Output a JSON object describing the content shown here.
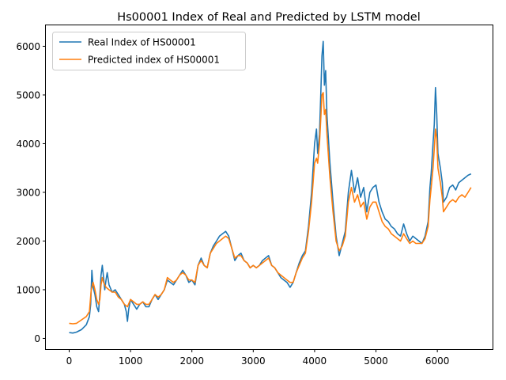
{
  "chart_data": {
    "type": "line",
    "title": "Hs00001 Index of Real and Predicted by LSTM model",
    "xlabel": "",
    "ylabel": "",
    "xlim": [
      -380,
      6900
    ],
    "ylim": [
      -220,
      6430
    ],
    "xticks": [
      0,
      1000,
      2000,
      3000,
      4000,
      5000,
      6000
    ],
    "yticks": [
      0,
      1000,
      2000,
      3000,
      4000,
      5000,
      6000
    ],
    "grid": false,
    "legend_position": "upper left",
    "series": [
      {
        "name": "Real Index of HS00001",
        "color": "#1f77b4",
        "points": [
          [
            0,
            120
          ],
          [
            60,
            110
          ],
          [
            120,
            130
          ],
          [
            200,
            180
          ],
          [
            280,
            280
          ],
          [
            330,
            450
          ],
          [
            350,
            700
          ],
          [
            370,
            1400
          ],
          [
            390,
            1050
          ],
          [
            420,
            900
          ],
          [
            450,
            650
          ],
          [
            480,
            550
          ],
          [
            500,
            900
          ],
          [
            520,
            1300
          ],
          [
            540,
            1500
          ],
          [
            560,
            1250
          ],
          [
            580,
            1000
          ],
          [
            600,
            1200
          ],
          [
            620,
            1350
          ],
          [
            650,
            1100
          ],
          [
            700,
            950
          ],
          [
            750,
            1000
          ],
          [
            800,
            900
          ],
          [
            850,
            800
          ],
          [
            900,
            700
          ],
          [
            930,
            550
          ],
          [
            950,
            350
          ],
          [
            970,
            600
          ],
          [
            1000,
            800
          ],
          [
            1050,
            700
          ],
          [
            1100,
            600
          ],
          [
            1150,
            700
          ],
          [
            1200,
            750
          ],
          [
            1250,
            650
          ],
          [
            1300,
            650
          ],
          [
            1350,
            800
          ],
          [
            1400,
            900
          ],
          [
            1450,
            800
          ],
          [
            1500,
            900
          ],
          [
            1550,
            1000
          ],
          [
            1600,
            1200
          ],
          [
            1650,
            1150
          ],
          [
            1700,
            1100
          ],
          [
            1750,
            1200
          ],
          [
            1800,
            1300
          ],
          [
            1850,
            1400
          ],
          [
            1900,
            1300
          ],
          [
            1950,
            1150
          ],
          [
            2000,
            1200
          ],
          [
            2050,
            1100
          ],
          [
            2100,
            1500
          ],
          [
            2150,
            1650
          ],
          [
            2200,
            1500
          ],
          [
            2250,
            1450
          ],
          [
            2300,
            1750
          ],
          [
            2350,
            1900
          ],
          [
            2400,
            2000
          ],
          [
            2450,
            2100
          ],
          [
            2500,
            2150
          ],
          [
            2550,
            2200
          ],
          [
            2600,
            2100
          ],
          [
            2650,
            1850
          ],
          [
            2700,
            1600
          ],
          [
            2750,
            1700
          ],
          [
            2800,
            1750
          ],
          [
            2850,
            1600
          ],
          [
            2900,
            1550
          ],
          [
            2950,
            1450
          ],
          [
            3000,
            1500
          ],
          [
            3050,
            1450
          ],
          [
            3100,
            1500
          ],
          [
            3150,
            1600
          ],
          [
            3200,
            1650
          ],
          [
            3250,
            1700
          ],
          [
            3300,
            1500
          ],
          [
            3350,
            1450
          ],
          [
            3400,
            1350
          ],
          [
            3450,
            1250
          ],
          [
            3500,
            1200
          ],
          [
            3550,
            1150
          ],
          [
            3600,
            1050
          ],
          [
            3650,
            1150
          ],
          [
            3700,
            1350
          ],
          [
            3750,
            1550
          ],
          [
            3800,
            1700
          ],
          [
            3850,
            1800
          ],
          [
            3900,
            2300
          ],
          [
            3950,
            3000
          ],
          [
            4000,
            4000
          ],
          [
            4030,
            4300
          ],
          [
            4050,
            3800
          ],
          [
            4080,
            4200
          ],
          [
            4100,
            5000
          ],
          [
            4120,
            5800
          ],
          [
            4140,
            6100
          ],
          [
            4160,
            5200
          ],
          [
            4180,
            5500
          ],
          [
            4200,
            4600
          ],
          [
            4250,
            3600
          ],
          [
            4300,
            2800
          ],
          [
            4350,
            2100
          ],
          [
            4400,
            1700
          ],
          [
            4450,
            1950
          ],
          [
            4500,
            2200
          ],
          [
            4550,
            3000
          ],
          [
            4600,
            3450
          ],
          [
            4650,
            3000
          ],
          [
            4700,
            3300
          ],
          [
            4750,
            2900
          ],
          [
            4800,
            3100
          ],
          [
            4850,
            2600
          ],
          [
            4900,
            3000
          ],
          [
            4950,
            3100
          ],
          [
            5000,
            3150
          ],
          [
            5050,
            2800
          ],
          [
            5100,
            2600
          ],
          [
            5150,
            2450
          ],
          [
            5200,
            2400
          ],
          [
            5250,
            2300
          ],
          [
            5300,
            2250
          ],
          [
            5350,
            2150
          ],
          [
            5400,
            2100
          ],
          [
            5450,
            2350
          ],
          [
            5500,
            2150
          ],
          [
            5550,
            2000
          ],
          [
            5600,
            2100
          ],
          [
            5650,
            2050
          ],
          [
            5700,
            2000
          ],
          [
            5750,
            1950
          ],
          [
            5800,
            2100
          ],
          [
            5850,
            2400
          ],
          [
            5880,
            3100
          ],
          [
            5900,
            3400
          ],
          [
            5930,
            4000
          ],
          [
            5950,
            4400
          ],
          [
            5970,
            5150
          ],
          [
            5990,
            4600
          ],
          [
            6010,
            3800
          ],
          [
            6050,
            3500
          ],
          [
            6080,
            3200
          ],
          [
            6100,
            2800
          ],
          [
            6150,
            2900
          ],
          [
            6200,
            3100
          ],
          [
            6250,
            3150
          ],
          [
            6300,
            3050
          ],
          [
            6350,
            3200
          ],
          [
            6400,
            3250
          ],
          [
            6450,
            3300
          ],
          [
            6500,
            3350
          ],
          [
            6550,
            3380
          ]
        ]
      },
      {
        "name": "Predicted index of HS00001",
        "color": "#ff7f0e",
        "points": [
          [
            0,
            310
          ],
          [
            60,
            300
          ],
          [
            120,
            310
          ],
          [
            200,
            380
          ],
          [
            280,
            450
          ],
          [
            330,
            550
          ],
          [
            360,
            1000
          ],
          [
            390,
            1150
          ],
          [
            420,
            1000
          ],
          [
            450,
            800
          ],
          [
            480,
            700
          ],
          [
            500,
            800
          ],
          [
            520,
            1100
          ],
          [
            540,
            1250
          ],
          [
            560,
            1150
          ],
          [
            600,
            1050
          ],
          [
            650,
            1000
          ],
          [
            700,
            950
          ],
          [
            750,
            950
          ],
          [
            800,
            850
          ],
          [
            850,
            800
          ],
          [
            900,
            700
          ],
          [
            950,
            650
          ],
          [
            1000,
            800
          ],
          [
            1050,
            750
          ],
          [
            1100,
            700
          ],
          [
            1150,
            700
          ],
          [
            1200,
            750
          ],
          [
            1250,
            700
          ],
          [
            1300,
            700
          ],
          [
            1350,
            800
          ],
          [
            1400,
            900
          ],
          [
            1450,
            850
          ],
          [
            1500,
            900
          ],
          [
            1550,
            1000
          ],
          [
            1600,
            1250
          ],
          [
            1650,
            1200
          ],
          [
            1700,
            1150
          ],
          [
            1750,
            1200
          ],
          [
            1800,
            1300
          ],
          [
            1850,
            1350
          ],
          [
            1900,
            1300
          ],
          [
            1950,
            1200
          ],
          [
            2000,
            1200
          ],
          [
            2050,
            1150
          ],
          [
            2100,
            1500
          ],
          [
            2150,
            1600
          ],
          [
            2200,
            1500
          ],
          [
            2250,
            1450
          ],
          [
            2300,
            1750
          ],
          [
            2350,
            1850
          ],
          [
            2400,
            1950
          ],
          [
            2450,
            2000
          ],
          [
            2500,
            2050
          ],
          [
            2550,
            2100
          ],
          [
            2600,
            2050
          ],
          [
            2650,
            1850
          ],
          [
            2700,
            1650
          ],
          [
            2750,
            1700
          ],
          [
            2800,
            1700
          ],
          [
            2850,
            1600
          ],
          [
            2900,
            1550
          ],
          [
            2950,
            1450
          ],
          [
            3000,
            1500
          ],
          [
            3050,
            1450
          ],
          [
            3100,
            1500
          ],
          [
            3150,
            1550
          ],
          [
            3200,
            1600
          ],
          [
            3250,
            1650
          ],
          [
            3300,
            1500
          ],
          [
            3350,
            1450
          ],
          [
            3400,
            1350
          ],
          [
            3450,
            1300
          ],
          [
            3500,
            1250
          ],
          [
            3550,
            1200
          ],
          [
            3600,
            1150
          ],
          [
            3650,
            1150
          ],
          [
            3700,
            1350
          ],
          [
            3750,
            1500
          ],
          [
            3800,
            1650
          ],
          [
            3850,
            1750
          ],
          [
            3900,
            2200
          ],
          [
            3950,
            2800
          ],
          [
            4000,
            3600
          ],
          [
            4030,
            3700
          ],
          [
            4050,
            3600
          ],
          [
            4080,
            4000
          ],
          [
            4100,
            4500
          ],
          [
            4120,
            5000
          ],
          [
            4140,
            5050
          ],
          [
            4160,
            4600
          ],
          [
            4180,
            4700
          ],
          [
            4200,
            4200
          ],
          [
            4250,
            3300
          ],
          [
            4300,
            2600
          ],
          [
            4350,
            2000
          ],
          [
            4400,
            1800
          ],
          [
            4450,
            1900
          ],
          [
            4500,
            2100
          ],
          [
            4550,
            2800
          ],
          [
            4600,
            3100
          ],
          [
            4650,
            2800
          ],
          [
            4700,
            2950
          ],
          [
            4750,
            2700
          ],
          [
            4800,
            2800
          ],
          [
            4850,
            2450
          ],
          [
            4900,
            2700
          ],
          [
            4950,
            2800
          ],
          [
            5000,
            2800
          ],
          [
            5050,
            2600
          ],
          [
            5100,
            2400
          ],
          [
            5150,
            2300
          ],
          [
            5200,
            2250
          ],
          [
            5250,
            2150
          ],
          [
            5300,
            2100
          ],
          [
            5350,
            2050
          ],
          [
            5400,
            2000
          ],
          [
            5450,
            2150
          ],
          [
            5500,
            2050
          ],
          [
            5550,
            1950
          ],
          [
            5600,
            2000
          ],
          [
            5650,
            1950
          ],
          [
            5700,
            1950
          ],
          [
            5750,
            1950
          ],
          [
            5800,
            2050
          ],
          [
            5850,
            2300
          ],
          [
            5880,
            2850
          ],
          [
            5900,
            3100
          ],
          [
            5930,
            3500
          ],
          [
            5950,
            3900
          ],
          [
            5970,
            4300
          ],
          [
            5990,
            4100
          ],
          [
            6010,
            3500
          ],
          [
            6050,
            3200
          ],
          [
            6080,
            2900
          ],
          [
            6100,
            2600
          ],
          [
            6150,
            2700
          ],
          [
            6200,
            2800
          ],
          [
            6250,
            2850
          ],
          [
            6300,
            2800
          ],
          [
            6350,
            2900
          ],
          [
            6400,
            2950
          ],
          [
            6450,
            2900
          ],
          [
            6500,
            3000
          ],
          [
            6550,
            3100
          ]
        ]
      }
    ]
  }
}
